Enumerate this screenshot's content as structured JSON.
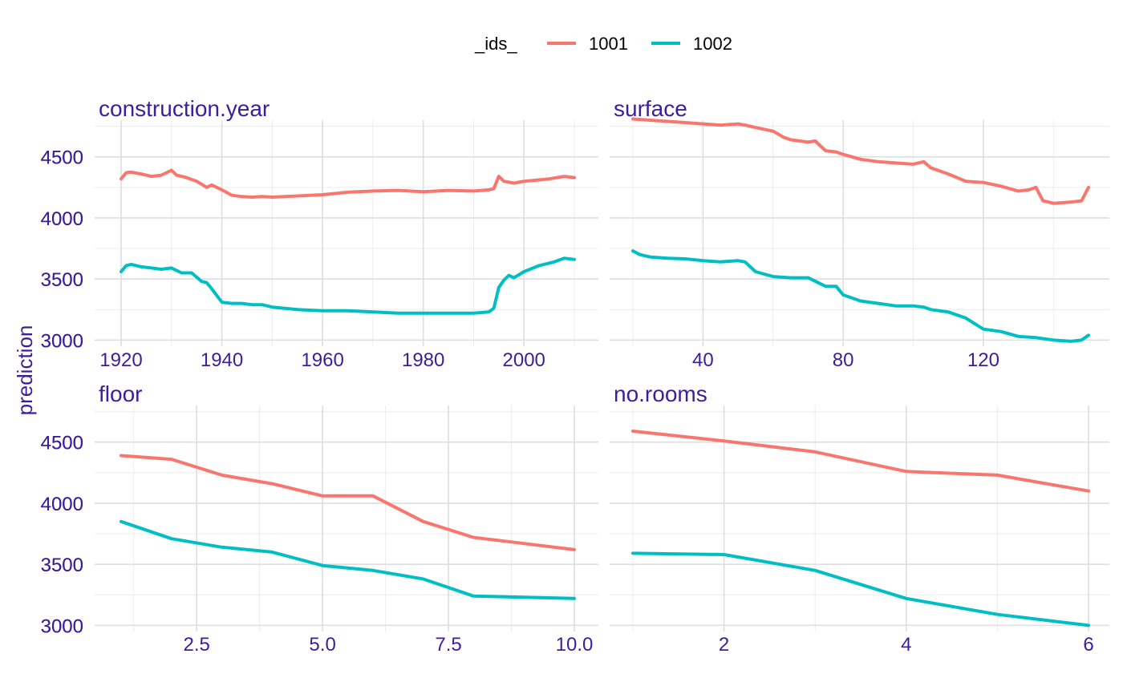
{
  "legend": {
    "title": "_ids_",
    "entries": [
      {
        "label": "1001",
        "color": "#F8766D"
      },
      {
        "label": "1002",
        "color": "#00BFC4"
      }
    ]
  },
  "y_axis_title": "prediction",
  "chart_data": [
    {
      "type": "line",
      "title": "construction.year",
      "xlim": [
        1920,
        2010
      ],
      "ylim": [
        2950,
        4800
      ],
      "x_ticks": [
        1920,
        1940,
        1960,
        1980,
        2000
      ],
      "x_tick_labels": [
        "1920",
        "1940",
        "1960",
        "1980",
        "2000"
      ],
      "y_ticks": [
        3000,
        3500,
        4000,
        4500
      ],
      "y_tick_labels": [
        "3000",
        "3500",
        "4000",
        "4500"
      ],
      "series": [
        {
          "name": "1001",
          "color": "#F8766D",
          "x": [
            1920,
            1921,
            1922,
            1924,
            1926,
            1928,
            1929,
            1930,
            1931,
            1933,
            1935,
            1937,
            1938,
            1940,
            1942,
            1944,
            1946,
            1948,
            1950,
            1955,
            1960,
            1965,
            1970,
            1975,
            1980,
            1985,
            1990,
            1993,
            1994,
            1995,
            1996,
            1998,
            2000,
            2005,
            2008,
            2010
          ],
          "y": [
            4320,
            4370,
            4375,
            4360,
            4340,
            4350,
            4370,
            4390,
            4350,
            4330,
            4300,
            4250,
            4270,
            4230,
            4185,
            4175,
            4170,
            4175,
            4170,
            4180,
            4190,
            4210,
            4220,
            4225,
            4215,
            4225,
            4220,
            4230,
            4240,
            4340,
            4300,
            4285,
            4300,
            4320,
            4340,
            4330
          ]
        },
        {
          "name": "1002",
          "color": "#00BFC4",
          "x": [
            1920,
            1921,
            1922,
            1924,
            1926,
            1928,
            1930,
            1932,
            1934,
            1936,
            1937,
            1938,
            1940,
            1942,
            1944,
            1946,
            1948,
            1950,
            1955,
            1960,
            1965,
            1970,
            1975,
            1980,
            1985,
            1990,
            1993,
            1994,
            1995,
            1996,
            1997,
            1998,
            2000,
            2003,
            2006,
            2008,
            2010
          ],
          "y": [
            3560,
            3610,
            3620,
            3600,
            3590,
            3580,
            3590,
            3550,
            3550,
            3480,
            3470,
            3420,
            3310,
            3300,
            3300,
            3290,
            3290,
            3270,
            3250,
            3240,
            3240,
            3230,
            3220,
            3220,
            3220,
            3220,
            3230,
            3260,
            3430,
            3490,
            3530,
            3510,
            3560,
            3610,
            3640,
            3670,
            3660
          ]
        }
      ]
    },
    {
      "type": "line",
      "title": "surface",
      "xlim": [
        20,
        150
      ],
      "ylim": [
        2950,
        4800
      ],
      "x_ticks": [
        40,
        80,
        120
      ],
      "x_tick_labels": [
        "40",
        "80",
        "120"
      ],
      "y_ticks": [
        3000,
        3500,
        4000,
        4500
      ],
      "y_tick_labels": [
        "3000",
        "3500",
        "4000",
        "4500"
      ],
      "series": [
        {
          "name": "1001",
          "color": "#F8766D",
          "x": [
            20,
            25,
            30,
            35,
            40,
            45,
            50,
            52,
            55,
            60,
            63,
            65,
            70,
            72,
            75,
            78,
            80,
            85,
            90,
            95,
            100,
            103,
            105,
            110,
            115,
            120,
            125,
            130,
            133,
            135,
            137,
            140,
            145,
            148,
            150
          ],
          "y": [
            4810,
            4800,
            4790,
            4780,
            4770,
            4760,
            4770,
            4760,
            4740,
            4710,
            4660,
            4640,
            4620,
            4630,
            4550,
            4540,
            4520,
            4480,
            4460,
            4450,
            4440,
            4460,
            4410,
            4360,
            4300,
            4290,
            4260,
            4220,
            4230,
            4250,
            4140,
            4120,
            4130,
            4140,
            4250
          ]
        },
        {
          "name": "1002",
          "color": "#00BFC4",
          "x": [
            20,
            22,
            25,
            30,
            35,
            40,
            45,
            50,
            52,
            55,
            60,
            65,
            70,
            75,
            78,
            80,
            85,
            90,
            95,
            100,
            103,
            105,
            110,
            115,
            120,
            125,
            130,
            135,
            140,
            145,
            148,
            150
          ],
          "y": [
            3730,
            3700,
            3680,
            3670,
            3665,
            3650,
            3640,
            3650,
            3640,
            3560,
            3520,
            3510,
            3510,
            3440,
            3440,
            3370,
            3320,
            3300,
            3280,
            3280,
            3270,
            3250,
            3230,
            3180,
            3090,
            3070,
            3030,
            3020,
            3000,
            2990,
            3000,
            3040
          ]
        }
      ]
    },
    {
      "type": "line",
      "title": "floor",
      "xlim": [
        1,
        10
      ],
      "ylim": [
        2950,
        4800
      ],
      "x_ticks": [
        2.5,
        5.0,
        7.5,
        10.0
      ],
      "x_tick_labels": [
        "2.5",
        "5.0",
        "7.5",
        "10.0"
      ],
      "y_ticks": [
        3000,
        3500,
        4000,
        4500
      ],
      "y_tick_labels": [
        "3000",
        "3500",
        "4000",
        "4500"
      ],
      "series": [
        {
          "name": "1001",
          "color": "#F8766D",
          "x": [
            1,
            2,
            3,
            4,
            5,
            6,
            7,
            8,
            9,
            10
          ],
          "y": [
            4390,
            4360,
            4230,
            4160,
            4060,
            4060,
            3850,
            3720,
            3670,
            3620
          ]
        },
        {
          "name": "1002",
          "color": "#00BFC4",
          "x": [
            1,
            2,
            3,
            4,
            5,
            6,
            7,
            8,
            9,
            10
          ],
          "y": [
            3850,
            3710,
            3640,
            3600,
            3490,
            3450,
            3380,
            3240,
            3230,
            3220
          ]
        }
      ]
    },
    {
      "type": "line",
      "title": "no.rooms",
      "xlim": [
        1,
        6
      ],
      "ylim": [
        2950,
        4800
      ],
      "x_ticks": [
        2,
        4,
        6
      ],
      "x_tick_labels": [
        "2",
        "4",
        "6"
      ],
      "y_ticks": [
        3000,
        3500,
        4000,
        4500
      ],
      "y_tick_labels": [
        "3000",
        "3500",
        "4000",
        "4500"
      ],
      "series": [
        {
          "name": "1001",
          "color": "#F8766D",
          "x": [
            1,
            2,
            3,
            4,
            5,
            6
          ],
          "y": [
            4590,
            4510,
            4420,
            4260,
            4230,
            4100
          ]
        },
        {
          "name": "1002",
          "color": "#00BFC4",
          "x": [
            1,
            2,
            3,
            4,
            5,
            6
          ],
          "y": [
            3590,
            3580,
            3450,
            3220,
            3090,
            3000
          ]
        }
      ]
    }
  ]
}
